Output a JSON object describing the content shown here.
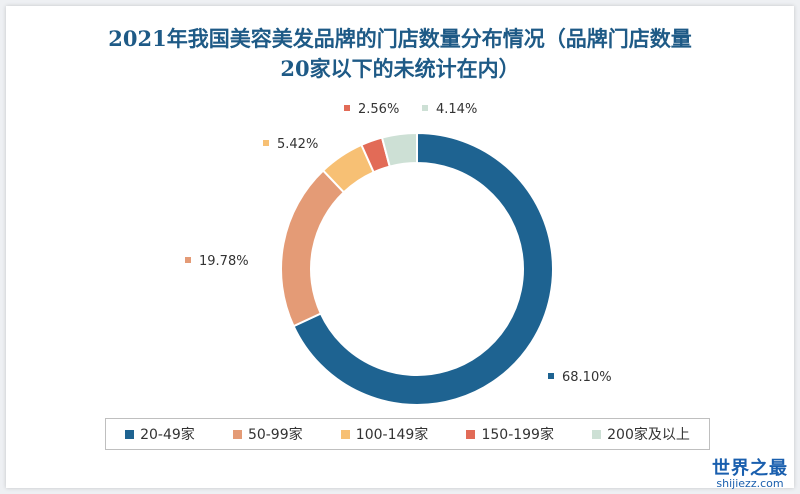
{
  "chart_data": {
    "type": "pie",
    "title_line1": "2021年我国美容美发品牌的门店数量分布情况（品牌门店数量",
    "title_line2": "20家以下的未统计在内）",
    "slices": [
      {
        "category": "20-49家",
        "label": "68.10%",
        "value": 68.1,
        "color": "#1e6391"
      },
      {
        "category": "50-99家",
        "label": "19.78%",
        "value": 19.78,
        "color": "#e49b76"
      },
      {
        "category": "100-149家",
        "label": "5.42%",
        "value": 5.42,
        "color": "#f7c074"
      },
      {
        "category": "150-199家",
        "label": "2.56%",
        "value": 2.56,
        "color": "#e26b57"
      },
      {
        "category": "200家及以上",
        "label": "4.14%",
        "value": 4.14,
        "color": "#cde0d5"
      }
    ],
    "legend_position": "bottom"
  },
  "watermark": {
    "main": "世界之最",
    "sub": "shijiezz.com"
  }
}
